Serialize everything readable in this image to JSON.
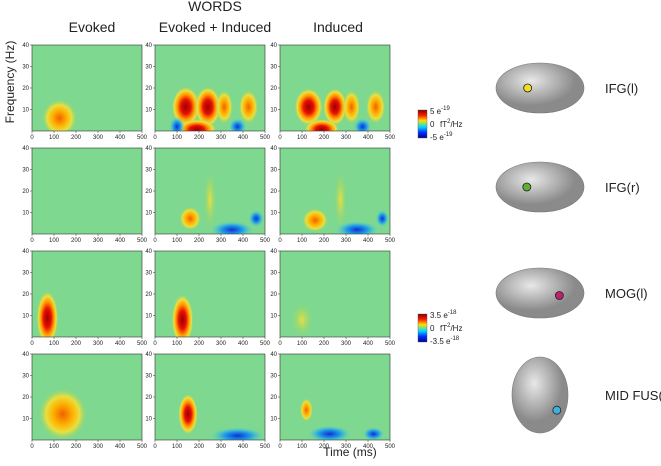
{
  "header": {
    "title": "WORDS",
    "columns": [
      "Evoked",
      "Evoked + Induced",
      "Induced"
    ]
  },
  "axes": {
    "y_label": "Frequency (Hz)",
    "x_label": "Time (ms)",
    "x_ticks": [
      0,
      100,
      200,
      300,
      400,
      500
    ],
    "y_ticks": [
      10,
      20,
      30,
      40
    ]
  },
  "colorbars": [
    {
      "max": {
        "base": "5 e",
        "exp": "-19"
      },
      "mid": "0",
      "min": {
        "base": "-5 e",
        "exp": "-19"
      },
      "unit": {
        "base": "fT",
        "exp": "2",
        "tail": "/Hz"
      }
    },
    {
      "max": {
        "base": "3.5 e",
        "exp": "-18"
      },
      "mid": "0",
      "min": {
        "base": "-3.5 e",
        "exp": "-18"
      },
      "unit": {
        "base": "fT",
        "exp": "2",
        "tail": "/Hz"
      }
    }
  ],
  "regions": [
    "IFG(l)",
    "IFG(r)",
    "MOG(l)",
    "MID FUS(l)"
  ]
}
